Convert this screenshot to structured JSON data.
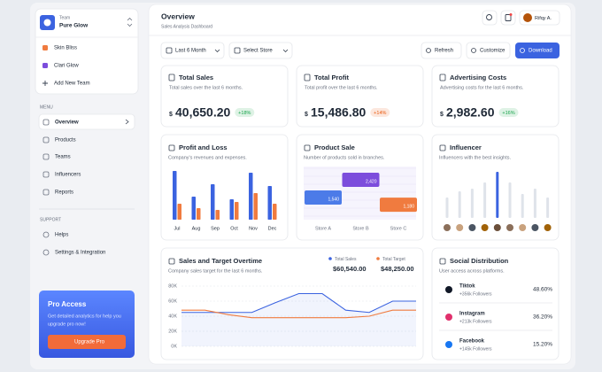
{
  "sidebar": {
    "team_label": "Team",
    "team_name": "Pure Glow",
    "teams": [
      "Skin Bliss",
      "Clari Glow"
    ],
    "add_team": "Add New Team",
    "menu_label": "MENU",
    "menu": [
      "Overview",
      "Products",
      "Teams",
      "Influencers",
      "Reports"
    ],
    "support_label": "SUPPORT",
    "support": [
      "Helps",
      "Settings & Integration"
    ],
    "pro": {
      "title": "Pro Access",
      "text": [
        "Get detailed analytics for help you",
        "upgrade pro now!"
      ],
      "button": "Upgrade Pro"
    }
  },
  "header": {
    "title": "Overview",
    "subtitle": "Sales Analysis Dashboard",
    "user": "Rifqy A."
  },
  "toolbar": {
    "filters": [
      "Last 6 Month",
      "Select Store"
    ],
    "actions": [
      "Refresh",
      "Customize",
      "Download"
    ]
  },
  "stats": [
    {
      "title": "Total Sales",
      "subtitle": "Total sales over the last 6 months.",
      "currency": "$",
      "value": "40,650.20",
      "change": "+18%",
      "change_color": "#16a34a"
    },
    {
      "title": "Total Profit",
      "subtitle": "Total profit over the last 6 months.",
      "currency": "$",
      "value": "15,486.80",
      "change": "+14%",
      "change_color": "#ea580c"
    },
    {
      "title": "Advertising Costs",
      "subtitle": "Advertising costs for the last 6 months.",
      "currency": "$",
      "value": "2,982.60",
      "change": "+16%",
      "change_color": "#16a34a"
    }
  ],
  "profit_loss": {
    "type": "bar",
    "title": "Profit and Loss",
    "subtitle": "Company's revenues and expenses.",
    "categories": [
      "Jul",
      "Aug",
      "Sep",
      "Oct",
      "Nov",
      "Dec"
    ],
    "series": [
      {
        "color": "#3b63e0",
        "values": [
          55,
          26,
          40,
          23,
          53,
          38
        ]
      },
      {
        "color": "#f07b3f",
        "values": [
          18,
          13,
          11,
          20,
          30,
          18
        ]
      }
    ]
  },
  "product_sale": {
    "type": "bar",
    "title": "Product Sale",
    "subtitle": "Number of products sold in branches.",
    "categories": [
      "Store A",
      "Store B",
      "Store C"
    ],
    "values": [
      1540,
      2420,
      1180
    ],
    "value_labels": [
      "1,540",
      "2,420",
      "1,180"
    ],
    "colors": [
      "#4c7be8",
      "#7c4ddc",
      "#f07b3f"
    ]
  },
  "influencer": {
    "type": "bar",
    "title": "Influencer",
    "subtitle": "Influencers with the best insights.",
    "values": [
      23,
      30,
      33,
      40,
      52,
      40,
      27,
      33,
      23
    ],
    "colors": [
      "#dfe3ea",
      "#dfe3ea",
      "#dfe3ea",
      "#dfe3ea",
      "#3b63e0",
      "#dfe3ea",
      "#dfe3ea",
      "#dfe3ea",
      "#dfe3ea"
    ]
  },
  "sales_target": {
    "type": "line",
    "title": "Sales and Target Overtime",
    "subtitle": "Company sales target for the last 6 months.",
    "ylim": [
      0,
      80000
    ],
    "yticks": [
      {
        "value": 0,
        "label": "0K"
      },
      {
        "value": 20000,
        "label": "20K"
      },
      {
        "value": 40000,
        "label": "40K"
      },
      {
        "value": 60000,
        "label": "60K"
      },
      {
        "value": 80000,
        "label": "80K"
      }
    ],
    "grid": true,
    "series": [
      {
        "name": "Total Sales",
        "color": "#3b63e0",
        "total": "$60,540.00",
        "values": [
          45000,
          45000,
          45000,
          45000,
          58000,
          70000,
          70000,
          48000,
          45000,
          60000,
          60000
        ]
      },
      {
        "name": "Total Target",
        "color": "#f07b3f",
        "total": "$48,250.00",
        "values": [
          48000,
          48000,
          42000,
          38000,
          38000,
          38000,
          38000,
          38000,
          40000,
          48000,
          48000
        ]
      }
    ]
  },
  "social": {
    "title": "Social Distribution",
    "subtitle": "User access across platforms.",
    "platforms": [
      {
        "name": "Tiktok",
        "followers": "+356k Followers",
        "share": "48.60%",
        "color": "#111827"
      },
      {
        "name": "Instagram",
        "followers": "+213k Followers",
        "share": "36.20%",
        "color": "#e1306c"
      },
      {
        "name": "Facebook",
        "followers": "+145k Followers",
        "share": "15.20%",
        "color": "#1877f2"
      }
    ]
  }
}
